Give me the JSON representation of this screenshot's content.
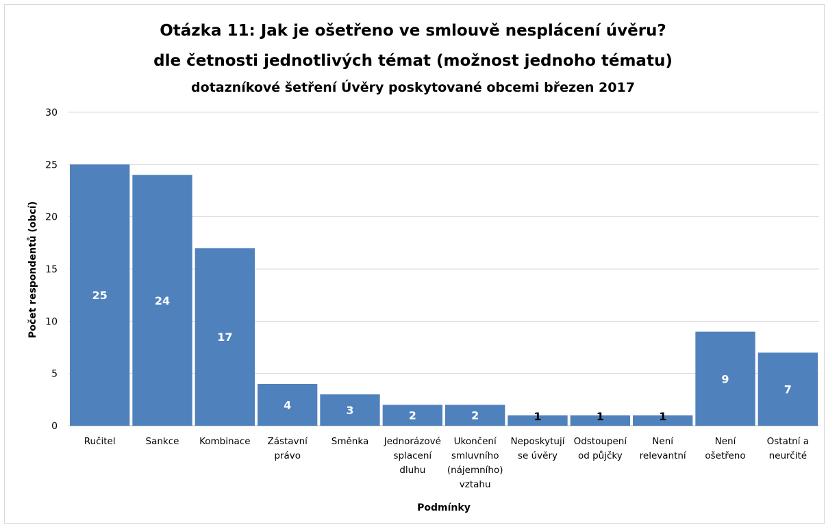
{
  "chart_data": {
    "type": "bar",
    "title": "Otázka 11: Jak je ošetřeno ve smlouvě nesplácení úvěru?",
    "subtitle": "dle četnosti jednotlivých témat (možnost jednoho tématu)",
    "subtitle2": "dotazníkové šetření Úvěry poskytované obcemi březen 2017",
    "xlabel": "Podmínky",
    "ylabel": "Počet respondentů (obcí)",
    "ylim": [
      0,
      30
    ],
    "yticks": [
      0,
      5,
      10,
      15,
      20,
      25,
      30
    ],
    "grid": true,
    "bar_color": "#4f81bd",
    "categories": [
      [
        "Ručitel"
      ],
      [
        "Sankce"
      ],
      [
        "Kombinace"
      ],
      [
        "Zástavní",
        "právo"
      ],
      [
        "Směnka"
      ],
      [
        "Jednorázové",
        "splacení",
        "dluhu"
      ],
      [
        "Ukončení",
        "smluvního",
        "(nájemního)",
        "vztahu"
      ],
      [
        "Neposkytují",
        "se úvěry"
      ],
      [
        "Odstoupení",
        "od půjčky"
      ],
      [
        "Není",
        "relevantní"
      ],
      [
        "Není",
        "ošetřeno"
      ],
      [
        "Ostatní a",
        "neurčité"
      ]
    ],
    "values": [
      25,
      24,
      17,
      4,
      3,
      2,
      2,
      1,
      1,
      1,
      9,
      7
    ]
  }
}
